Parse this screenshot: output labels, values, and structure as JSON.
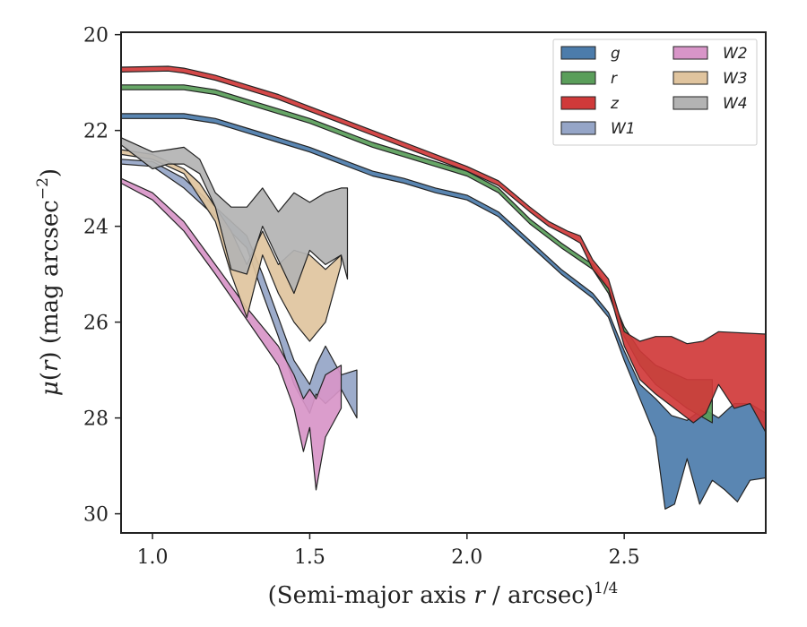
{
  "chart_data": {
    "type": "area",
    "xlabel": "(Semi-major axis r / arcsec)",
    "xlabel_parts": {
      "prefix": "(Semi-major axis ",
      "var": "r",
      "suffix": " / arcsec)",
      "superscript": "1/4"
    },
    "ylabel": "μ(r) (mag arcsec⁻²)",
    "ylabel_parts": {
      "mu": "μ",
      "open": "(",
      "var": "r",
      "close": ") (mag arcsec",
      "superscript": "−2",
      "end": ")"
    },
    "xlim": [
      0.9,
      2.95
    ],
    "ylim": [
      30.4,
      19.95
    ],
    "y_inverted": true,
    "xticks": [
      1.0,
      1.5,
      2.0,
      2.5
    ],
    "xtick_labels": [
      "1.0",
      "1.5",
      "2.0",
      "2.5"
    ],
    "yticks": [
      20,
      22,
      24,
      26,
      28,
      30
    ],
    "ytick_labels": [
      "20",
      "22",
      "24",
      "26",
      "28",
      "30"
    ],
    "grid": false,
    "legend": {
      "placement": "top-right",
      "columns": 2
    },
    "series": [
      {
        "name": "g",
        "color": "#4C7CAB",
        "upper": [
          [
            0.9,
            21.65
          ],
          [
            1.1,
            21.65
          ],
          [
            1.2,
            21.75
          ],
          [
            1.3,
            21.95
          ],
          [
            1.4,
            22.15
          ],
          [
            1.5,
            22.35
          ],
          [
            1.6,
            22.6
          ],
          [
            1.7,
            22.85
          ],
          [
            1.8,
            23.0
          ],
          [
            1.9,
            23.2
          ],
          [
            2.0,
            23.35
          ],
          [
            2.1,
            23.7
          ],
          [
            2.2,
            24.3
          ],
          [
            2.3,
            24.9
          ],
          [
            2.4,
            25.4
          ],
          [
            2.45,
            25.8
          ],
          [
            2.5,
            26.6
          ],
          [
            2.55,
            27.3
          ],
          [
            2.6,
            27.6
          ],
          [
            2.65,
            27.95
          ],
          [
            2.7,
            28.05
          ],
          [
            2.75,
            27.8
          ],
          [
            2.8,
            28.0
          ],
          [
            2.85,
            27.7
          ],
          [
            2.9,
            27.7
          ],
          [
            2.95,
            27.9
          ]
        ],
        "lower": [
          [
            0.9,
            21.75
          ],
          [
            1.1,
            21.75
          ],
          [
            1.2,
            21.85
          ],
          [
            1.3,
            22.05
          ],
          [
            1.4,
            22.25
          ],
          [
            1.5,
            22.45
          ],
          [
            1.6,
            22.7
          ],
          [
            1.7,
            22.95
          ],
          [
            1.8,
            23.1
          ],
          [
            1.9,
            23.3
          ],
          [
            2.0,
            23.45
          ],
          [
            2.1,
            23.8
          ],
          [
            2.2,
            24.4
          ],
          [
            2.3,
            25.0
          ],
          [
            2.4,
            25.5
          ],
          [
            2.45,
            25.9
          ],
          [
            2.5,
            26.8
          ],
          [
            2.55,
            27.6
          ],
          [
            2.6,
            28.4
          ],
          [
            2.63,
            29.9
          ],
          [
            2.66,
            29.8
          ],
          [
            2.7,
            28.85
          ],
          [
            2.74,
            29.8
          ],
          [
            2.78,
            29.3
          ],
          [
            2.82,
            29.5
          ],
          [
            2.86,
            29.75
          ],
          [
            2.9,
            29.3
          ],
          [
            2.95,
            29.25
          ]
        ]
      },
      {
        "name": "r",
        "color": "#5A9E5A",
        "upper": [
          [
            0.9,
            21.05
          ],
          [
            1.1,
            21.05
          ],
          [
            1.2,
            21.15
          ],
          [
            1.3,
            21.35
          ],
          [
            1.4,
            21.55
          ],
          [
            1.5,
            21.75
          ],
          [
            1.6,
            22.0
          ],
          [
            1.7,
            22.25
          ],
          [
            1.8,
            22.45
          ],
          [
            1.9,
            22.65
          ],
          [
            2.0,
            22.85
          ],
          [
            2.1,
            23.2
          ],
          [
            2.2,
            23.85
          ],
          [
            2.3,
            24.35
          ],
          [
            2.4,
            24.8
          ],
          [
            2.45,
            25.3
          ],
          [
            2.5,
            26.1
          ],
          [
            2.55,
            26.6
          ],
          [
            2.6,
            26.9
          ],
          [
            2.7,
            27.2
          ],
          [
            2.78,
            27.2
          ]
        ],
        "lower": [
          [
            0.9,
            21.15
          ],
          [
            1.1,
            21.15
          ],
          [
            1.2,
            21.25
          ],
          [
            1.3,
            21.45
          ],
          [
            1.4,
            21.65
          ],
          [
            1.5,
            21.85
          ],
          [
            1.6,
            22.1
          ],
          [
            1.7,
            22.35
          ],
          [
            1.8,
            22.55
          ],
          [
            1.9,
            22.75
          ],
          [
            2.0,
            22.95
          ],
          [
            2.1,
            23.3
          ],
          [
            2.2,
            23.95
          ],
          [
            2.3,
            24.45
          ],
          [
            2.4,
            24.9
          ],
          [
            2.45,
            25.4
          ],
          [
            2.5,
            26.3
          ],
          [
            2.55,
            26.9
          ],
          [
            2.6,
            27.3
          ],
          [
            2.7,
            27.8
          ],
          [
            2.78,
            28.1
          ]
        ]
      },
      {
        "name": "z",
        "color": "#D03A3A",
        "upper": [
          [
            0.9,
            20.68
          ],
          [
            1.05,
            20.66
          ],
          [
            1.1,
            20.7
          ],
          [
            1.2,
            20.85
          ],
          [
            1.3,
            21.05
          ],
          [
            1.4,
            21.25
          ],
          [
            1.5,
            21.5
          ],
          [
            1.6,
            21.75
          ],
          [
            1.7,
            22.0
          ],
          [
            1.8,
            22.25
          ],
          [
            1.9,
            22.5
          ],
          [
            2.0,
            22.75
          ],
          [
            2.1,
            23.05
          ],
          [
            2.2,
            23.6
          ],
          [
            2.26,
            23.9
          ],
          [
            2.32,
            24.1
          ],
          [
            2.36,
            24.2
          ],
          [
            2.4,
            24.7
          ],
          [
            2.45,
            25.1
          ],
          [
            2.5,
            26.2
          ],
          [
            2.55,
            26.4
          ],
          [
            2.6,
            26.3
          ],
          [
            2.65,
            26.3
          ],
          [
            2.7,
            26.45
          ],
          [
            2.75,
            26.4
          ],
          [
            2.8,
            26.2
          ],
          [
            2.95,
            26.25
          ]
        ],
        "lower": [
          [
            0.9,
            20.78
          ],
          [
            1.05,
            20.76
          ],
          [
            1.1,
            20.8
          ],
          [
            1.2,
            20.95
          ],
          [
            1.3,
            21.15
          ],
          [
            1.4,
            21.35
          ],
          [
            1.5,
            21.6
          ],
          [
            1.6,
            21.85
          ],
          [
            1.7,
            22.1
          ],
          [
            1.8,
            22.35
          ],
          [
            1.9,
            22.6
          ],
          [
            2.0,
            22.85
          ],
          [
            2.1,
            23.15
          ],
          [
            2.2,
            23.7
          ],
          [
            2.26,
            24.0
          ],
          [
            2.32,
            24.2
          ],
          [
            2.36,
            24.35
          ],
          [
            2.4,
            24.9
          ],
          [
            2.45,
            25.3
          ],
          [
            2.5,
            26.5
          ],
          [
            2.55,
            27.2
          ],
          [
            2.6,
            27.5
          ],
          [
            2.66,
            27.8
          ],
          [
            2.72,
            28.1
          ],
          [
            2.76,
            27.9
          ],
          [
            2.8,
            27.3
          ],
          [
            2.85,
            27.8
          ],
          [
            2.9,
            27.7
          ],
          [
            2.95,
            28.3
          ]
        ]
      },
      {
        "name": "W1",
        "color": "#95A5C7",
        "upper": [
          [
            0.9,
            22.6
          ],
          [
            1.0,
            22.65
          ],
          [
            1.1,
            23.0
          ],
          [
            1.2,
            23.6
          ],
          [
            1.3,
            24.2
          ],
          [
            1.35,
            25.0
          ],
          [
            1.4,
            25.9
          ],
          [
            1.45,
            26.8
          ],
          [
            1.5,
            27.3
          ],
          [
            1.52,
            26.9
          ],
          [
            1.55,
            26.5
          ],
          [
            1.6,
            27.1
          ],
          [
            1.65,
            27.0
          ]
        ],
        "lower": [
          [
            0.9,
            22.7
          ],
          [
            1.0,
            22.75
          ],
          [
            1.1,
            23.2
          ],
          [
            1.2,
            23.8
          ],
          [
            1.3,
            24.45
          ],
          [
            1.35,
            25.4
          ],
          [
            1.4,
            26.3
          ],
          [
            1.45,
            27.3
          ],
          [
            1.5,
            27.9
          ],
          [
            1.52,
            27.5
          ],
          [
            1.55,
            27.7
          ],
          [
            1.6,
            27.4
          ],
          [
            1.65,
            28.0
          ]
        ]
      },
      {
        "name": "W2",
        "color": "#D895C8",
        "upper": [
          [
            0.9,
            23.0
          ],
          [
            1.0,
            23.3
          ],
          [
            1.1,
            23.9
          ],
          [
            1.2,
            24.8
          ],
          [
            1.3,
            25.7
          ],
          [
            1.4,
            26.5
          ],
          [
            1.45,
            27.1
          ],
          [
            1.48,
            27.6
          ],
          [
            1.5,
            27.4
          ],
          [
            1.52,
            27.6
          ],
          [
            1.55,
            27.1
          ],
          [
            1.6,
            26.9
          ]
        ],
        "lower": [
          [
            0.9,
            23.1
          ],
          [
            1.0,
            23.45
          ],
          [
            1.1,
            24.1
          ],
          [
            1.2,
            25.0
          ],
          [
            1.3,
            25.95
          ],
          [
            1.4,
            26.9
          ],
          [
            1.45,
            27.8
          ],
          [
            1.48,
            28.7
          ],
          [
            1.5,
            28.2
          ],
          [
            1.52,
            29.5
          ],
          [
            1.55,
            28.4
          ],
          [
            1.6,
            27.8
          ]
        ]
      },
      {
        "name": "W3",
        "color": "#E0C49E",
        "upper": [
          [
            0.9,
            22.4
          ],
          [
            1.0,
            22.5
          ],
          [
            1.1,
            22.8
          ],
          [
            1.15,
            23.1
          ],
          [
            1.2,
            23.6
          ],
          [
            1.25,
            24.1
          ],
          [
            1.3,
            24.8
          ],
          [
            1.35,
            24.1
          ],
          [
            1.4,
            24.8
          ],
          [
            1.45,
            24.5
          ],
          [
            1.5,
            24.6
          ],
          [
            1.55,
            24.9
          ],
          [
            1.6,
            24.6
          ]
        ],
        "lower": [
          [
            0.9,
            22.5
          ],
          [
            1.0,
            22.6
          ],
          [
            1.1,
            22.9
          ],
          [
            1.15,
            23.4
          ],
          [
            1.2,
            23.9
          ],
          [
            1.25,
            25.0
          ],
          [
            1.3,
            25.9
          ],
          [
            1.35,
            24.6
          ],
          [
            1.4,
            25.4
          ],
          [
            1.45,
            26.0
          ],
          [
            1.5,
            26.4
          ],
          [
            1.55,
            26.0
          ],
          [
            1.6,
            24.8
          ]
        ]
      },
      {
        "name": "W4",
        "color": "#B3B3B3",
        "upper": [
          [
            0.9,
            22.15
          ],
          [
            1.0,
            22.45
          ],
          [
            1.05,
            22.4
          ],
          [
            1.1,
            22.35
          ],
          [
            1.15,
            22.6
          ],
          [
            1.2,
            23.3
          ],
          [
            1.25,
            23.6
          ],
          [
            1.3,
            23.6
          ],
          [
            1.35,
            23.2
          ],
          [
            1.4,
            23.7
          ],
          [
            1.45,
            23.3
          ],
          [
            1.5,
            23.5
          ],
          [
            1.55,
            23.3
          ],
          [
            1.6,
            23.2
          ],
          [
            1.62,
            23.2
          ]
        ],
        "lower": [
          [
            0.9,
            22.3
          ],
          [
            1.0,
            22.8
          ],
          [
            1.05,
            22.7
          ],
          [
            1.1,
            22.7
          ],
          [
            1.15,
            22.9
          ],
          [
            1.2,
            23.6
          ],
          [
            1.25,
            24.9
          ],
          [
            1.3,
            25.0
          ],
          [
            1.35,
            24.0
          ],
          [
            1.4,
            24.7
          ],
          [
            1.45,
            25.4
          ],
          [
            1.5,
            24.5
          ],
          [
            1.55,
            24.8
          ],
          [
            1.6,
            24.6
          ],
          [
            1.62,
            25.1
          ]
        ]
      }
    ]
  }
}
